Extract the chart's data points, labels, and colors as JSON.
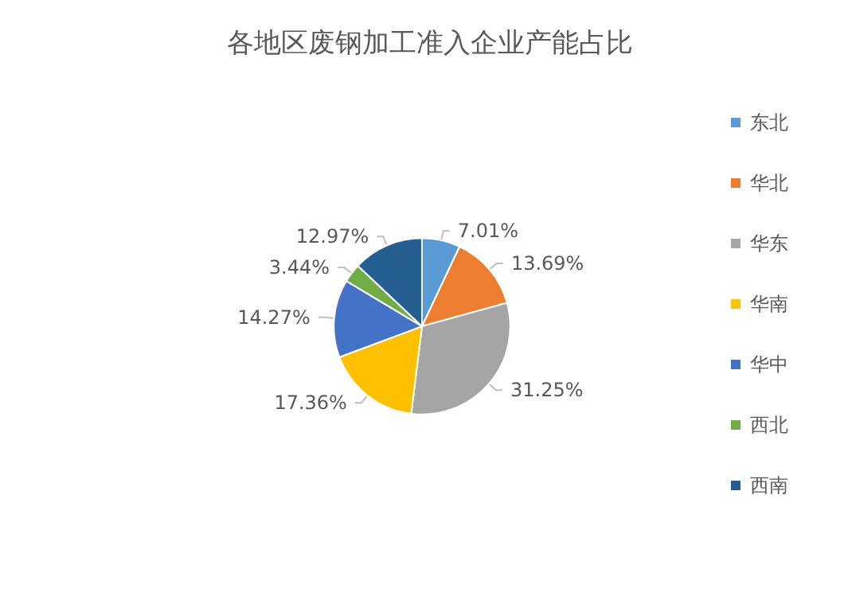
{
  "chart_data": {
    "type": "pie",
    "title": "各地区废钢加工准入企业产能占比",
    "categories": [
      "东北",
      "华北",
      "华东",
      "华南",
      "华中",
      "西北",
      "西南"
    ],
    "values": [
      7.01,
      13.69,
      31.25,
      17.36,
      14.27,
      3.44,
      12.97
    ],
    "value_labels": [
      "7.01%",
      "13.69%",
      "31.25%",
      "17.36%",
      "14.27%",
      "3.44%",
      "12.97%"
    ],
    "colors": [
      "#5b9bd5",
      "#ed7d31",
      "#a5a5a5",
      "#ffc000",
      "#4472c4",
      "#70ad47",
      "#255e91"
    ],
    "legend": "right"
  }
}
